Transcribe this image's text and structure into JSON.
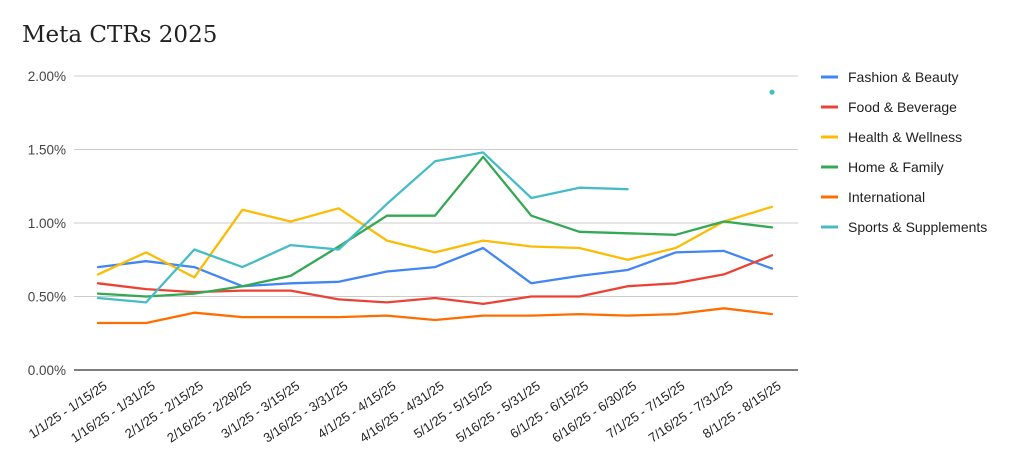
{
  "chart_data": {
    "type": "line",
    "title": "Meta CTRs 2025",
    "xlabel": "",
    "ylabel": "",
    "ylim": [
      0,
      2.0
    ],
    "y_ticks": [
      "0.00%",
      "0.50%",
      "1.00%",
      "1.50%",
      "2.00%"
    ],
    "y_tick_values": [
      0,
      0.5,
      1.0,
      1.5,
      2.0
    ],
    "grid": true,
    "legend_position": "right",
    "categories": [
      "1/1/25 - 1/15/25",
      "1/16/25 - 1/31/25",
      "2/1/25 - 2/15/25",
      "2/16/25 - 2/28/25",
      "3/1/25 - 3/15/25",
      "3/16/25 - 3/31/25",
      "4/1/25 - 4/15/25",
      "4/16/25 - 4/31/25",
      "5/1/25 - 5/15/25",
      "5/16/25 - 5/31/25",
      "6/1/25 - 6/15/25",
      "6/16/25 - 6/30/25",
      "7/1/25 - 7/15/25",
      "7/16/25 - 7/31/25",
      "8/1/25 - 8/15/25"
    ],
    "series": [
      {
        "name": "Fashion & Beauty",
        "color": "#4285F4",
        "values": [
          0.7,
          0.74,
          0.7,
          0.57,
          0.59,
          0.6,
          0.67,
          0.7,
          0.83,
          0.59,
          0.64,
          0.68,
          0.8,
          0.81,
          0.69
        ]
      },
      {
        "name": "Food & Beverage",
        "color": "#EA4335",
        "values": [
          0.59,
          0.55,
          0.53,
          0.54,
          0.54,
          0.48,
          0.46,
          0.49,
          0.45,
          0.5,
          0.5,
          0.57,
          0.59,
          0.65,
          0.78
        ]
      },
      {
        "name": "Health & Wellness",
        "color": "#FBBC04",
        "values": [
          0.65,
          0.8,
          0.63,
          1.09,
          1.01,
          1.1,
          0.88,
          0.8,
          0.88,
          0.84,
          0.83,
          0.75,
          0.83,
          1.01,
          1.11
        ]
      },
      {
        "name": "Home & Family",
        "color": "#34A853",
        "values": [
          0.52,
          0.5,
          0.52,
          0.57,
          0.64,
          0.84,
          1.05,
          1.05,
          1.45,
          1.05,
          0.94,
          0.93,
          0.92,
          1.01,
          0.97
        ]
      },
      {
        "name": "International",
        "color": "#FF6D01",
        "values": [
          0.32,
          0.32,
          0.39,
          0.36,
          0.36,
          0.36,
          0.37,
          0.34,
          0.37,
          0.37,
          0.38,
          0.37,
          0.38,
          0.42,
          0.38
        ]
      },
      {
        "name": "Sports & Supplements",
        "color": "#46BDC6",
        "values": [
          0.49,
          0.46,
          0.82,
          0.7,
          0.85,
          0.82,
          1.13,
          1.42,
          1.48,
          1.17,
          1.24,
          1.23,
          null,
          null,
          1.89
        ]
      }
    ]
  }
}
